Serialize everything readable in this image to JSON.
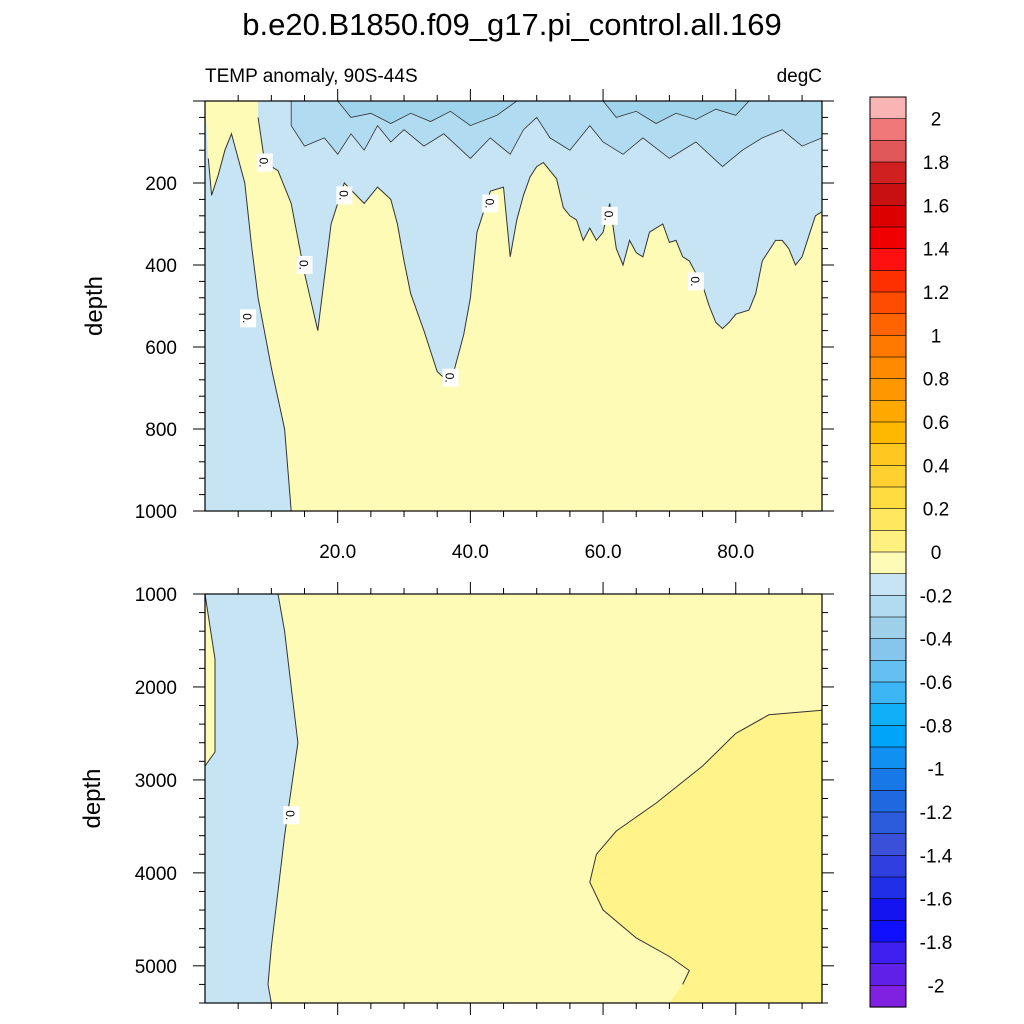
{
  "figure": {
    "title": "b.e20.B1850.f09_g17.pi_control.all.169",
    "left_subtitle": "TEMP anomaly, 90S-44S",
    "right_subtitle": "degC"
  },
  "colors": {
    "neg_fill": "#c6e4f4",
    "neg_fill_dark": "#b0dbf0",
    "neg_fill_darker": "#a0d3ec",
    "pos_fill": "#fefbb6",
    "pos_fill_darker": "#fff389",
    "line": "#333333",
    "frame": "#000000"
  },
  "chart_data": [
    {
      "type": "contour",
      "panel": "upper",
      "x_ticks": [
        20,
        40,
        60,
        80
      ],
      "x_tick_labels": [
        "20.0",
        "40.0",
        "60.0",
        "80.0"
      ],
      "y_ticks": [
        200,
        400,
        600,
        800,
        1000
      ],
      "y_tick_labels": [
        "200",
        "400",
        "600",
        "800",
        "1000"
      ],
      "ylabel": "depth",
      "xlim": [
        0,
        93
      ],
      "ylim": [
        0,
        1000
      ],
      "y_inverted": true,
      "contour_labels": [
        "0.",
        "0.",
        "0.",
        "0.",
        "0.",
        "0.",
        "0.",
        "0."
      ],
      "zero_contour": [
        [
          0.5,
          140
        ],
        [
          1,
          230
        ],
        [
          2,
          180
        ],
        [
          3,
          120
        ],
        [
          4,
          80
        ],
        [
          6,
          200
        ],
        [
          7,
          350
        ],
        [
          8,
          480
        ],
        [
          10,
          650
        ],
        [
          12,
          800
        ],
        [
          13,
          1000
        ]
      ],
      "zero_contour_shallow_side": [
        [
          8,
          40
        ],
        [
          9,
          150
        ],
        [
          11,
          170
        ],
        [
          13,
          250
        ],
        [
          15,
          420
        ],
        [
          17,
          560
        ],
        [
          19,
          300
        ],
        [
          21,
          200
        ],
        [
          24,
          250
        ],
        [
          26,
          210
        ],
        [
          28,
          240
        ],
        [
          29,
          300
        ],
        [
          30,
          390
        ],
        [
          31,
          470
        ],
        [
          33,
          560
        ],
        [
          35,
          660
        ],
        [
          37,
          690
        ],
        [
          39,
          570
        ],
        [
          40,
          480
        ],
        [
          41,
          320
        ],
        [
          43,
          220
        ],
        [
          45,
          210
        ],
        [
          46,
          380
        ],
        [
          47,
          290
        ],
        [
          48,
          230
        ],
        [
          49,
          185
        ],
        [
          50,
          160
        ],
        [
          51,
          150
        ],
        [
          52,
          170
        ],
        [
          53,
          190
        ],
        [
          54,
          260
        ],
        [
          55,
          280
        ],
        [
          56,
          290
        ],
        [
          57,
          340
        ],
        [
          58,
          310
        ],
        [
          59,
          340
        ],
        [
          60,
          320
        ],
        [
          61,
          250
        ],
        [
          62,
          360
        ],
        [
          63,
          400
        ],
        [
          64,
          340
        ],
        [
          65,
          370
        ],
        [
          66,
          380
        ],
        [
          67,
          320
        ],
        [
          68,
          310
        ],
        [
          69,
          300
        ],
        [
          70,
          345
        ],
        [
          71,
          340
        ],
        [
          72,
          380
        ],
        [
          73,
          390
        ],
        [
          74,
          420
        ],
        [
          75,
          450
        ],
        [
          76,
          500
        ],
        [
          77,
          540
        ],
        [
          78,
          555
        ],
        [
          79,
          540
        ],
        [
          80,
          520
        ],
        [
          82,
          510
        ],
        [
          83,
          470
        ],
        [
          84,
          390
        ],
        [
          86,
          340
        ],
        [
          87,
          340
        ],
        [
          88,
          360
        ],
        [
          89,
          400
        ],
        [
          90,
          380
        ],
        [
          91,
          330
        ],
        [
          92,
          280
        ],
        [
          93,
          270
        ]
      ],
      "darker_blue_near_surface": true
    },
    {
      "type": "contour",
      "panel": "lower",
      "x_ticks": [
        20,
        40,
        60,
        80
      ],
      "y_ticks": [
        1000,
        2000,
        3000,
        4000,
        5000
      ],
      "y_tick_labels": [
        "1000",
        "2000",
        "3000",
        "4000",
        "5000"
      ],
      "ylabel": "depth",
      "xlim": [
        0,
        93
      ],
      "ylim": [
        1000,
        5400
      ],
      "y_inverted": true,
      "contour_labels": [
        "0."
      ],
      "left_zero_contour": [
        [
          0,
          1000
        ],
        [
          1.5,
          1700
        ],
        [
          1.5,
          2700
        ],
        [
          0,
          2850
        ]
      ],
      "right_zero_contour": [
        [
          11,
          1000
        ],
        [
          12,
          1400
        ],
        [
          13,
          2000
        ],
        [
          14,
          2600
        ],
        [
          13,
          3100
        ],
        [
          12,
          3600
        ],
        [
          11,
          4200
        ],
        [
          10,
          4800
        ],
        [
          9.5,
          5200
        ],
        [
          10,
          5400
        ]
      ],
      "warmer_region_0p1": [
        [
          93,
          2250
        ],
        [
          85,
          2300
        ],
        [
          80,
          2500
        ],
        [
          75,
          2850
        ],
        [
          68,
          3250
        ],
        [
          62,
          3550
        ],
        [
          59,
          3800
        ],
        [
          58,
          4100
        ],
        [
          60,
          4400
        ],
        [
          65,
          4700
        ],
        [
          70,
          4900
        ],
        [
          73,
          5050
        ],
        [
          72,
          5200
        ],
        [
          70,
          5400
        ],
        [
          93,
          5400
        ]
      ]
    }
  ],
  "colorbar": {
    "levels": [
      "2",
      "1.8",
      "1.6",
      "1.4",
      "1.2",
      "1",
      "0.8",
      "0.6",
      "0.4",
      "0.2",
      "0",
      "-0.2",
      "-0.4",
      "-0.6",
      "-0.8",
      "-1",
      "-1.2",
      "-1.4",
      "-1.6",
      "-1.8",
      "-2"
    ],
    "colors": [
      "#fbb4b4",
      "#f07878",
      "#e05858",
      "#d02020",
      "#c81010",
      "#dc0000",
      "#f00000",
      "#ff1010",
      "#ff3000",
      "#ff4c00",
      "#ff6400",
      "#ff7800",
      "#ff8a00",
      "#ff9800",
      "#ffa800",
      "#ffb800",
      "#ffc820",
      "#ffd030",
      "#ffdc40",
      "#ffe860",
      "#fff080",
      "#fefbb6",
      "#c6e4f4",
      "#b0dbf0",
      "#9ed0ea",
      "#86c6ec",
      "#64c0f0",
      "#3cb6f4",
      "#10b0f8",
      "#00a4f8",
      "#1090f0",
      "#1878e8",
      "#2068e0",
      "#2c5cdc",
      "#3a50d8",
      "#3040e0",
      "#2030e8",
      "#1414f0",
      "#1010ff",
      "#4020f0",
      "#6020e8",
      "#8020e0"
    ]
  }
}
